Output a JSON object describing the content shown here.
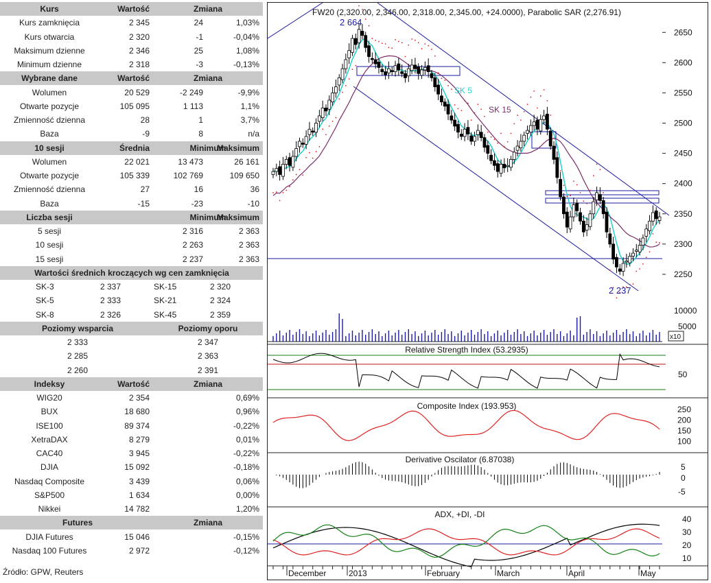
{
  "left": {
    "sections": [
      {
        "kind": "hdr4",
        "cols": [
          "Kurs",
          "Wartość",
          "Zmiana",
          ""
        ]
      },
      {
        "kind": "r4",
        "cols": [
          "Kurs zamknięcia",
          "2 345",
          "24",
          "1,03%"
        ]
      },
      {
        "kind": "r4",
        "cols": [
          "Kurs otwarcia",
          "2 320",
          "-1",
          "-0,04%"
        ]
      },
      {
        "kind": "r4",
        "cols": [
          "Maksimum dzienne",
          "2 346",
          "25",
          "1,08%"
        ]
      },
      {
        "kind": "r4",
        "cols": [
          "Minimum dzienne",
          "2 318",
          "-3",
          "-0,13%"
        ]
      },
      {
        "kind": "hdr4",
        "cols": [
          "Wybrane dane",
          "Wartość",
          "Zmiana",
          ""
        ]
      },
      {
        "kind": "r4",
        "cols": [
          "Wolumen",
          "20 529",
          "-2 249",
          "-9,9%"
        ]
      },
      {
        "kind": "r4",
        "cols": [
          "Otwarte pozycje",
          "105 095",
          "1 113",
          "1,1%"
        ]
      },
      {
        "kind": "r4",
        "cols": [
          "Zmienność dzienna",
          "28",
          "1",
          "3,7%"
        ]
      },
      {
        "kind": "r4",
        "cols": [
          "Baza",
          "-9",
          "8",
          "n/a"
        ]
      },
      {
        "kind": "hdr4",
        "cols": [
          "10 sesji",
          "Średnia",
          "Minimum",
          "Maksimum"
        ]
      },
      {
        "kind": "r4",
        "cols": [
          "Wolumen",
          "22 021",
          "13 473",
          "26 161"
        ]
      },
      {
        "kind": "r4",
        "cols": [
          "Otwarte pozycje",
          "105 339",
          "102 769",
          "109 650"
        ]
      },
      {
        "kind": "r4",
        "cols": [
          "Zmienność dzienna",
          "27",
          "16",
          "36"
        ]
      },
      {
        "kind": "r4",
        "cols": [
          "Baza",
          "-15",
          "-23",
          "-10"
        ]
      },
      {
        "kind": "hdr4",
        "cols": [
          "Liczba sesji",
          "",
          "Minimum",
          "Maksimum"
        ]
      },
      {
        "kind": "r4",
        "cols": [
          "5 sesji",
          "",
          "2 316",
          "2 363"
        ]
      },
      {
        "kind": "r4",
        "cols": [
          "10 sesji",
          "",
          "2 263",
          "2 363"
        ]
      },
      {
        "kind": "r4",
        "cols": [
          "15 sesji",
          "",
          "2 237",
          "2 363"
        ]
      },
      {
        "kind": "hdrw",
        "cols": [
          "Wartości średnich kroczących wg cen zamknięcia"
        ]
      },
      {
        "kind": "ma",
        "cols": [
          "SK-3",
          "2 337",
          "SK-15",
          "2 320"
        ]
      },
      {
        "kind": "ma",
        "cols": [
          "SK-5",
          "2 333",
          "SK-21",
          "2 324"
        ]
      },
      {
        "kind": "ma",
        "cols": [
          "SK-8",
          "2 326",
          "SK-45",
          "2 359"
        ]
      },
      {
        "kind": "hdr2",
        "cols": [
          "Poziomy wsparcia",
          "Poziomy oporu"
        ]
      },
      {
        "kind": "r2",
        "cols": [
          "2 333",
          "2 347"
        ]
      },
      {
        "kind": "r2",
        "cols": [
          "2 285",
          "2 363"
        ]
      },
      {
        "kind": "r2",
        "cols": [
          "2 260",
          "2 391"
        ]
      },
      {
        "kind": "hdr4",
        "cols": [
          "Indeksy",
          "Wartość",
          "Zmiana",
          ""
        ]
      },
      {
        "kind": "r4",
        "cols": [
          "WIG20",
          "2 354",
          "",
          "0,69%"
        ]
      },
      {
        "kind": "r4",
        "cols": [
          "BUX",
          "18 680",
          "",
          "0,96%"
        ]
      },
      {
        "kind": "r4",
        "cols": [
          "ISE100",
          "89 374",
          "",
          "-0,22%"
        ]
      },
      {
        "kind": "r4",
        "cols": [
          "XetraDAX",
          "8 279",
          "",
          "0,01%"
        ]
      },
      {
        "kind": "r4",
        "cols": [
          "CAC40",
          "3 945",
          "",
          "-0,22%"
        ]
      },
      {
        "kind": "r4",
        "cols": [
          "DJIA",
          "15 092",
          "",
          "-0,18%"
        ]
      },
      {
        "kind": "r4",
        "cols": [
          "Nasdaq Composite",
          "3 439",
          "",
          "0,06%"
        ]
      },
      {
        "kind": "r4",
        "cols": [
          "S&P500",
          "1 634",
          "",
          "0,00%"
        ]
      },
      {
        "kind": "r4",
        "cols": [
          "Nikkei",
          "14 782",
          "",
          "1,20%"
        ]
      },
      {
        "kind": "hdrf",
        "cols": [
          "Futures",
          "Zmiana"
        ]
      },
      {
        "kind": "r4",
        "cols": [
          "DJIA Futures",
          "15 046",
          "",
          "-0,15%"
        ]
      },
      {
        "kind": "r4",
        "cols": [
          "Nasdaq 100 Futures",
          "2 972",
          "",
          "-0,12%"
        ]
      }
    ],
    "source": "Źródło: GPW, Reuters"
  },
  "chart_data": {
    "type": "candlestick",
    "price_title": "FW20 (2,320.00, 2,346.00, 2,318.00, 2,345.00, +24.0000), Parabolic SAR (2,276.91)",
    "x_months": [
      "December",
      "2013",
      "February",
      "March",
      "April",
      "May"
    ],
    "price_axis": {
      "ylim": [
        2200,
        2690
      ],
      "ticks": [
        2250,
        2300,
        2350,
        2400,
        2450,
        2500,
        2550,
        2600,
        2650
      ]
    },
    "annotations": {
      "high_label": "2 664",
      "low_label": "2 237",
      "sk5_label": "SK 5",
      "sk15_label": "SK 15",
      "horizontal_level": 2276
    },
    "ohlc_close_series": [
      2420,
      2425,
      2415,
      2432,
      2440,
      2430,
      2445,
      2458,
      2470,
      2465,
      2478,
      2490,
      2485,
      2500,
      2512,
      2525,
      2520,
      2538,
      2550,
      2560,
      2575,
      2590,
      2605,
      2620,
      2640,
      2630,
      2655,
      2645,
      2625,
      2610,
      2605,
      2598,
      2592,
      2585,
      2580,
      2590,
      2585,
      2595,
      2588,
      2582,
      2575,
      2590,
      2596,
      2590,
      2582,
      2588,
      2592,
      2585,
      2575,
      2560,
      2548,
      2535,
      2528,
      2515,
      2505,
      2495,
      2485,
      2478,
      2490,
      2482,
      2470,
      2478,
      2488,
      2476,
      2460,
      2450,
      2438,
      2430,
      2420,
      2432,
      2426,
      2430,
      2440,
      2452,
      2462,
      2470,
      2480,
      2488,
      2496,
      2502,
      2490,
      2506,
      2512,
      2490,
      2462,
      2440,
      2410,
      2378,
      2350,
      2328,
      2345,
      2365,
      2355,
      2338,
      2320,
      2332,
      2350,
      2370,
      2385,
      2372,
      2350,
      2320,
      2300,
      2275,
      2262,
      2255,
      2268,
      2272,
      2280,
      2285,
      2290,
      2298,
      2310,
      2325,
      2338,
      2352,
      2342,
      2345
    ],
    "volume_axis": {
      "ticks": [
        "10000",
        "5000"
      ],
      "unit": "x10"
    },
    "rsi": {
      "title": "Relative Strength Index (53.2935)",
      "ticks": [
        "50"
      ],
      "upper": 70,
      "lower": 30,
      "middle": 60
    },
    "composite": {
      "title": "Composite Index (193.953)",
      "ticks": [
        "250",
        "200",
        "150",
        "100"
      ]
    },
    "derivative": {
      "title": "Derivative Oscilator (6.87038)",
      "ticks": [
        "5",
        "0",
        "-5"
      ]
    },
    "adx": {
      "title": "ADX, +DI, -DI",
      "ticks": [
        "40",
        "30",
        "20",
        "10"
      ],
      "level": 20
    },
    "colors": {
      "sk5": "#20d0d0",
      "sk15": "#7a2a6a",
      "channel": "#1a1aa0",
      "sar": "#e02020",
      "rsi_bands": "#108010",
      "rsi_mid": "#c01010",
      "composite": "#e02020",
      "adx": "#000000",
      "plus_di": "#e02020",
      "minus_di": "#108010",
      "hline": "#1a1aa0"
    }
  }
}
